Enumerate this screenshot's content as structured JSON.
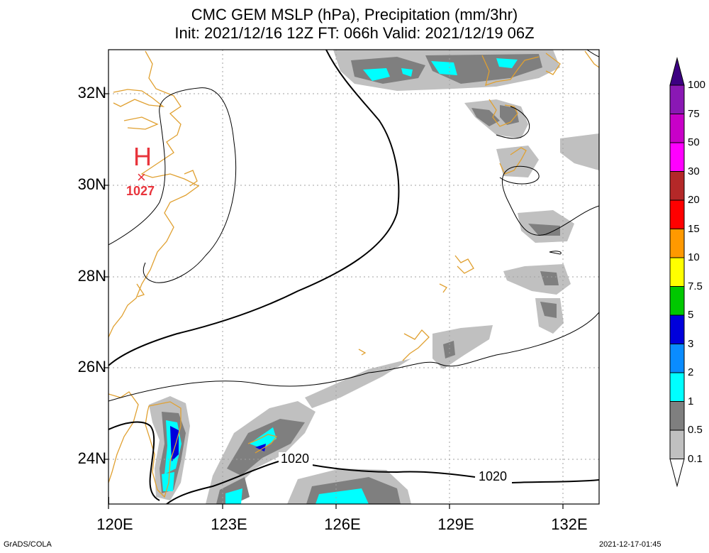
{
  "title_line1": "CMC GEM MSLP (hPa), Precipitation (mm/3hr)",
  "title_line2": "Init: 2021/12/16 12Z  FT: 066h  Valid: 2021/12/19 06Z",
  "lat_labels": [
    "32N",
    "30N",
    "28N",
    "26N",
    "24N"
  ],
  "lon_labels": [
    "120E",
    "123E",
    "126E",
    "129E",
    "132E"
  ],
  "high_pressure": {
    "symbol": "H",
    "marker": "×",
    "value": "1027"
  },
  "isobar_labels": [
    "1020",
    "1020"
  ],
  "colorbar": {
    "labels": [
      "100",
      "75",
      "50",
      "30",
      "20",
      "15",
      "10",
      "7.5",
      "5",
      "3",
      "2",
      "1",
      "0.5",
      "0.1"
    ],
    "colors": [
      "#3c0082",
      "#8a18b4",
      "#c800c8",
      "#ff00ff",
      "#b42828",
      "#ff0000",
      "#ff9900",
      "#ffff00",
      "#00c800",
      "#0000dc",
      "#0a8cff",
      "#00ffff",
      "#7f7f7f",
      "#c0c0c0"
    ]
  },
  "footer_left": "GrADS/COLA",
  "footer_right": "2021-12-17-01:45",
  "colors": {
    "coastline": "#e0a030",
    "high": "#e8343c",
    "grid": "#a0a0a0"
  }
}
